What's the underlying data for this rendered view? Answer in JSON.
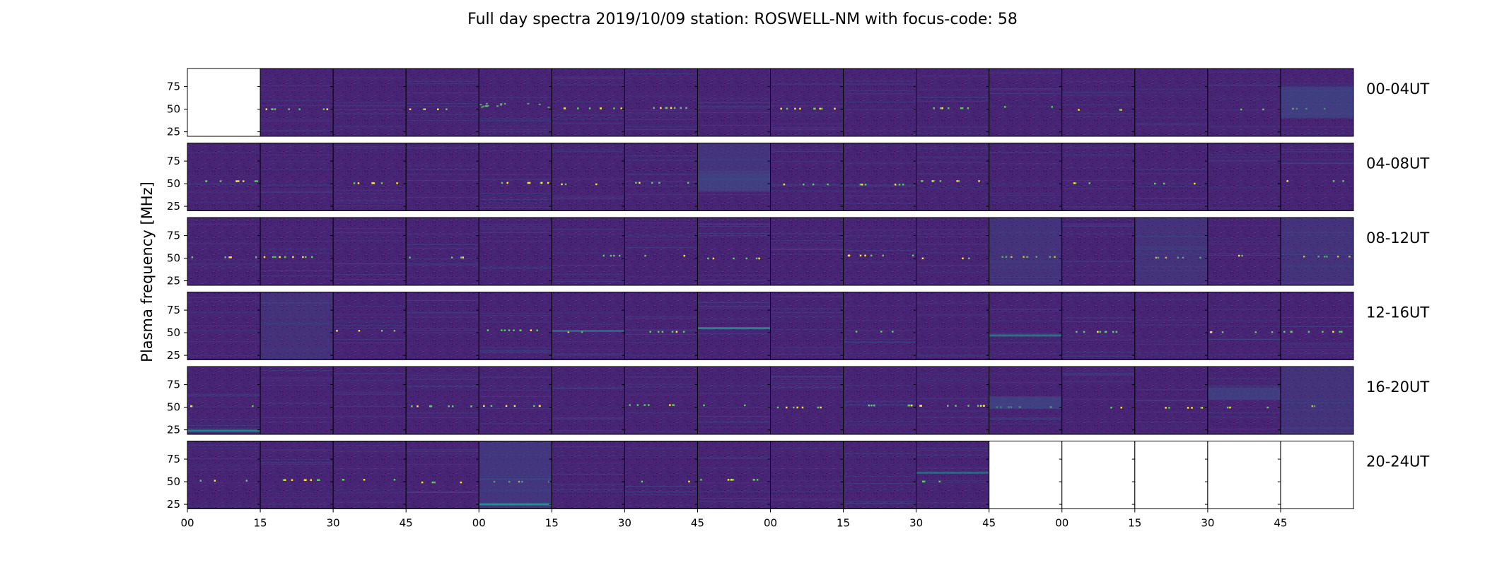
{
  "chart_data": {
    "type": "heatmap",
    "title": "Full day spectra 2019/10/09 station: ROSWELL-NM with focus-code: 58",
    "ylabel": "Plasma frequency [MHz]",
    "xlabel": "",
    "ylim": [
      20,
      95
    ],
    "yticks": [
      "25",
      "50",
      "75"
    ],
    "ytick_values": [
      25,
      50,
      75
    ],
    "xticks": [
      "00",
      "15",
      "30",
      "45",
      "00",
      "15",
      "30",
      "45",
      "00",
      "15",
      "30",
      "45",
      "00",
      "15",
      "30",
      "45"
    ],
    "colormap": "viridis",
    "colors": {
      "background_low": "#46085c",
      "panel_mid": "#482475",
      "speckle": "#3b528b",
      "bright_line": "#21908d",
      "hot": "#5ec962",
      "peak": "#fde725"
    },
    "rows": [
      {
        "label": "00-04UT",
        "panels": 16,
        "empty": [
          0
        ]
      },
      {
        "label": "04-08UT",
        "panels": 16,
        "empty": []
      },
      {
        "label": "08-12UT",
        "panels": 16,
        "empty": []
      },
      {
        "label": "12-16UT",
        "panels": 16,
        "empty": []
      },
      {
        "label": "16-20UT",
        "panels": 16,
        "empty": []
      },
      {
        "label": "20-24UT",
        "panels": 16,
        "empty": [
          11,
          12,
          13,
          14,
          15
        ]
      }
    ],
    "features": [
      {
        "row": 0,
        "panel": 15,
        "kind": "band",
        "fmin": 40,
        "fmax": 75,
        "level": 0.55
      },
      {
        "row": 0,
        "panel": 4,
        "kind": "dots",
        "freq": 55,
        "level": 0.8
      },
      {
        "row": 1,
        "panel": 7,
        "kind": "band",
        "fmin": 42,
        "fmax": 62,
        "level": 0.6
      },
      {
        "row": 1,
        "panel": 7,
        "kind": "band",
        "fmin": 62,
        "fmax": 95,
        "level": 0.35
      },
      {
        "row": 2,
        "panel": 11,
        "kind": "band",
        "fmin": 20,
        "fmax": 95,
        "level": 0.3
      },
      {
        "row": 2,
        "panel": 13,
        "kind": "band",
        "fmin": 20,
        "fmax": 95,
        "level": 0.3
      },
      {
        "row": 2,
        "panel": 15,
        "kind": "band",
        "fmin": 20,
        "fmax": 95,
        "level": 0.3
      },
      {
        "row": 3,
        "panel": 1,
        "kind": "band",
        "fmin": 20,
        "fmax": 95,
        "level": 0.25
      },
      {
        "row": 3,
        "panel": 7,
        "kind": "line",
        "freq": 55,
        "level": 0.9
      },
      {
        "row": 3,
        "panel": 11,
        "kind": "line",
        "freq": 47,
        "level": 0.7
      },
      {
        "row": 3,
        "panel": 5,
        "kind": "line",
        "freq": 52,
        "level": 0.6
      },
      {
        "row": 4,
        "panel": 0,
        "kind": "line",
        "freq": 24,
        "level": 0.85
      },
      {
        "row": 4,
        "panel": 11,
        "kind": "band",
        "fmin": 48,
        "fmax": 62,
        "level": 0.6
      },
      {
        "row": 4,
        "panel": 14,
        "kind": "band",
        "fmin": 58,
        "fmax": 72,
        "level": 0.55
      },
      {
        "row": 4,
        "panel": 15,
        "kind": "band",
        "fmin": 20,
        "fmax": 95,
        "level": 0.3
      },
      {
        "row": 5,
        "panel": 4,
        "kind": "band",
        "fmin": 20,
        "fmax": 95,
        "level": 0.4
      },
      {
        "row": 5,
        "panel": 4,
        "kind": "line",
        "freq": 25,
        "level": 0.95
      },
      {
        "row": 5,
        "panel": 10,
        "kind": "line",
        "freq": 60,
        "level": 0.6
      }
    ]
  }
}
